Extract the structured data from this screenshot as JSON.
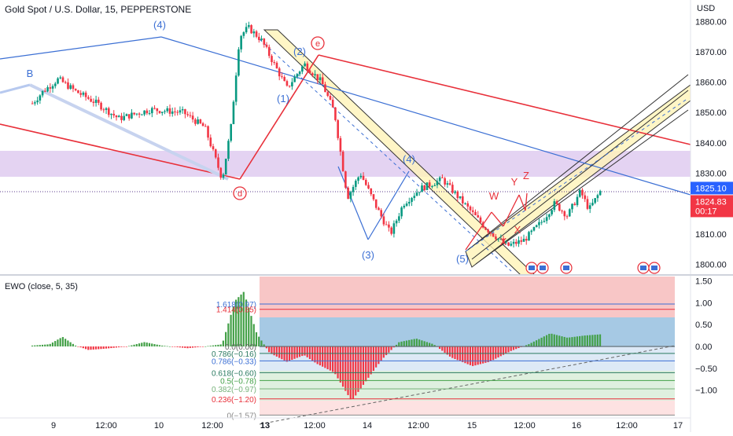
{
  "header": {
    "symbol_title": "Gold Spot / U.S. Dollar, 15, PEPPERSTONE",
    "currency": "USD"
  },
  "colors": {
    "candle_up": "#089981",
    "candle_down": "#f23645",
    "blue_line": "#3b6fd4",
    "red_line": "#e8303a",
    "purple_zone": "#e4d3f2",
    "channel_fill": "#fff4b8",
    "hist_green": "#43a047",
    "hist_red": "#f23645"
  },
  "price_axis": {
    "ticks": [
      "1880.00",
      "1870.00",
      "1860.00",
      "1850.00",
      "1840.00",
      "1830.00",
      "1820.00",
      "1810.00",
      "1800.00"
    ],
    "last_price_label": "1825.10",
    "bid_label": "1824.83",
    "countdown_label": "00:17"
  },
  "time_axis": {
    "ticks": [
      "9",
      "12:00",
      "10",
      "12:00",
      "13",
      "12:00",
      "14",
      "12:00",
      "15",
      "12:00",
      "16",
      "12:00",
      "17"
    ]
  },
  "wave_labels": {
    "B": "B",
    "w4_top": "(4)",
    "w2": "(2)",
    "w1": "(1)",
    "w3": "(3)",
    "w4": "(4)",
    "w5": "(5)",
    "e": "e",
    "d": "d",
    "W": "W",
    "X1": "X",
    "X2": "X",
    "Y": "Y",
    "Z": "Z"
  },
  "ewo": {
    "title": "EWO (close, 5, 35)",
    "ticks": [
      "1.50",
      "1.00",
      "0.50",
      "0.00",
      "−0.50",
      "−1.00"
    ],
    "fib_labels": [
      "1.618(0.97)",
      "1.414(0.85)",
      "0.0(0.00)",
      "0.786(−0.16)",
      "0.786(−0.33)",
      "0.618(−0.60)",
      "0.5(−0.78)",
      "0.382(−0.97)",
      "0.236(−1.20)",
      "0(−1.57)"
    ]
  },
  "chart_data": {
    "type": "candlestick",
    "title": "Gold Spot / U.S. Dollar, 15, PEPPERSTONE",
    "ylabel": "USD",
    "ylim": [
      1797,
      1885
    ],
    "x_ticks": [
      "9",
      "12:00",
      "10",
      "12:00",
      "13",
      "12:00",
      "14",
      "12:00",
      "15",
      "12:00",
      "16",
      "12:00",
      "17"
    ],
    "price_path": [
      {
        "t": 0.0,
        "p": 1853
      },
      {
        "t": 0.05,
        "p": 1857
      },
      {
        "t": 0.12,
        "p": 1861
      },
      {
        "t": 0.2,
        "p": 1857
      },
      {
        "t": 0.3,
        "p": 1853
      },
      {
        "t": 0.4,
        "p": 1848
      },
      {
        "t": 0.55,
        "p": 1851
      },
      {
        "t": 0.7,
        "p": 1850
      },
      {
        "t": 0.8,
        "p": 1845
      },
      {
        "t": 0.88,
        "p": 1828
      },
      {
        "t": 0.92,
        "p": 1845
      },
      {
        "t": 0.96,
        "p": 1875
      },
      {
        "t": 1.0,
        "p": 1878
      },
      {
        "t": 1.06,
        "p": 1874
      },
      {
        "t": 1.12,
        "p": 1866
      },
      {
        "t": 1.18,
        "p": 1858
      },
      {
        "t": 1.26,
        "p": 1866
      },
      {
        "t": 1.34,
        "p": 1860
      },
      {
        "t": 1.4,
        "p": 1850
      },
      {
        "t": 1.46,
        "p": 1822
      },
      {
        "t": 1.52,
        "p": 1830
      },
      {
        "t": 1.6,
        "p": 1818
      },
      {
        "t": 1.66,
        "p": 1810
      },
      {
        "t": 1.72,
        "p": 1820
      },
      {
        "t": 1.8,
        "p": 1825
      },
      {
        "t": 1.9,
        "p": 1828
      },
      {
        "t": 2.0,
        "p": 1820
      },
      {
        "t": 2.1,
        "p": 1812
      },
      {
        "t": 2.2,
        "p": 1806
      },
      {
        "t": 2.28,
        "p": 1808
      },
      {
        "t": 2.36,
        "p": 1814
      },
      {
        "t": 2.42,
        "p": 1820
      },
      {
        "t": 2.48,
        "p": 1816
      },
      {
        "t": 2.54,
        "p": 1824
      },
      {
        "t": 2.58,
        "p": 1818
      },
      {
        "t": 2.64,
        "p": 1825
      }
    ],
    "current_price": 1825.1,
    "indicator": {
      "name": "EWO (close, 5, 35)",
      "ylim": [
        -1.6,
        1.6
      ],
      "ticks": [
        1.5,
        1.0,
        0.5,
        0.0,
        -0.5,
        -1.0
      ],
      "histogram": [
        {
          "t": 0.0,
          "v": 0.02
        },
        {
          "t": 0.08,
          "v": 0.05
        },
        {
          "t": 0.14,
          "v": 0.22
        },
        {
          "t": 0.2,
          "v": 0.02
        },
        {
          "t": 0.26,
          "v": -0.08
        },
        {
          "t": 0.34,
          "v": -0.05
        },
        {
          "t": 0.44,
          "v": 0.0
        },
        {
          "t": 0.52,
          "v": 0.1
        },
        {
          "t": 0.6,
          "v": 0.02
        },
        {
          "t": 0.72,
          "v": -0.04
        },
        {
          "t": 0.8,
          "v": 0.0
        },
        {
          "t": 0.88,
          "v": 0.05
        },
        {
          "t": 0.94,
          "v": 1.05
        },
        {
          "t": 0.98,
          "v": 1.25
        },
        {
          "t": 1.04,
          "v": 0.3
        },
        {
          "t": 1.1,
          "v": -0.15
        },
        {
          "t": 1.18,
          "v": -0.35
        },
        {
          "t": 1.26,
          "v": -0.2
        },
        {
          "t": 1.32,
          "v": -0.4
        },
        {
          "t": 1.4,
          "v": -0.6
        },
        {
          "t": 1.48,
          "v": -1.25
        },
        {
          "t": 1.56,
          "v": -0.7
        },
        {
          "t": 1.62,
          "v": -0.3
        },
        {
          "t": 1.7,
          "v": 0.1
        },
        {
          "t": 1.78,
          "v": 0.18
        },
        {
          "t": 1.86,
          "v": 0.05
        },
        {
          "t": 1.94,
          "v": -0.25
        },
        {
          "t": 2.04,
          "v": -0.45
        },
        {
          "t": 2.12,
          "v": -0.35
        },
        {
          "t": 2.22,
          "v": -0.1
        },
        {
          "t": 2.3,
          "v": 0.05
        },
        {
          "t": 2.4,
          "v": 0.3
        },
        {
          "t": 2.48,
          "v": 0.2
        },
        {
          "t": 2.56,
          "v": 0.25
        },
        {
          "t": 2.64,
          "v": 0.28
        }
      ]
    }
  }
}
